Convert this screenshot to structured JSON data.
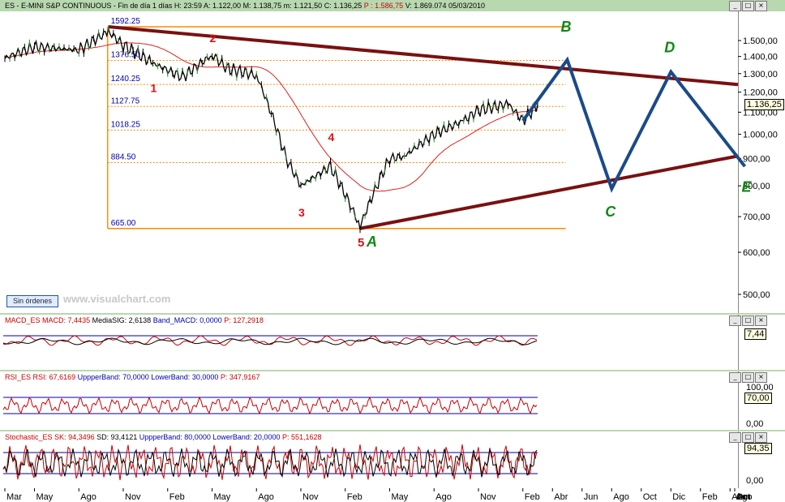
{
  "header": {
    "title": "ES - E-MINI S&P CONTINUOUS - Fin de día 1 días",
    "h_label": "H:",
    "h_value": "23:59",
    "a_label": "A:",
    "a_value": "1.122,00",
    "m_label": "M:",
    "m_value": "1.138,75",
    "mm_label": "m:",
    "mm_value": "1.121,50",
    "c_label": "C:",
    "c_value": "1.136,25",
    "p_label": "P :",
    "p_value": "1.586,75",
    "v_label": "V:",
    "v_value": "1.869.074",
    "date": "05/03/2010"
  },
  "price_scale": [
    "1.500,00",
    "1.400,00",
    "1.300,00",
    "1.200,00",
    "1.100,00",
    "1.000,00",
    "900,00",
    "800,00",
    "700,00",
    "600,00",
    "500,00"
  ],
  "last_price_badge": "1.136,25",
  "fib_levels": [
    "1592.25",
    "1376.50",
    "1240.25",
    "1127.75",
    "1018.25",
    "884.50",
    "665.00"
  ],
  "wave_labels": {
    "w1": "1",
    "w2": "2",
    "w3": "3",
    "w4": "4",
    "w5": "5",
    "A": "A",
    "B": "B",
    "C": "C",
    "D": "D",
    "E": "E"
  },
  "sin_ordenes": "Sin órdenes",
  "watermark": "www.visualchart.com",
  "macd": {
    "label": "MACD_ES",
    "macd_label": "MACD:",
    "macd_value": "7,4435",
    "sig_label": "MediaSIG:",
    "sig_value": "2,6138",
    "band_label": "Band_MACD:",
    "band_value": "0,0000",
    "p_label": "P:",
    "p_value": "127,2918",
    "badge": "7,44"
  },
  "rsi": {
    "label": "RSI_ES",
    "rsi_label": "RSI:",
    "rsi_value": "67,6169",
    "upper_label": "UppperBand:",
    "upper_value": "70,0000",
    "lower_label": "LowerBand:",
    "lower_value": "30,0000",
    "p_label": "P:",
    "p_value": "347,9167",
    "scale_top": "100,00",
    "scale_bottom": "0,00",
    "badge": "70,00"
  },
  "stoch": {
    "label": "Stochastic_ES",
    "sk_label": "SK:",
    "sk_value": "94,3496",
    "sd_label": "SD:",
    "sd_value": "93,4121",
    "upper_label": "UppperBand:",
    "upper_value": "80,0000",
    "lower_label": "LowerBand:",
    "lower_value": "20,0000",
    "p_label": "P:",
    "p_value": "551,1628",
    "badge": "94,35",
    "scale_bottom": "0,00"
  },
  "time_axis": [
    "Mar",
    "May",
    "Ago",
    "Nov",
    "Feb",
    "May",
    "Ago",
    "Nov",
    "Feb",
    "May",
    "Ago",
    "Nov",
    "Feb",
    "Abr",
    "Jun",
    "Ago",
    "Oct",
    "Dic",
    "Feb",
    "Abr",
    "Jun",
    "Ago",
    "Oct"
  ],
  "colors": {
    "price_line": "#000000",
    "candle_up": "#2e8b2e",
    "ma": "#dd2222",
    "trend": "#7a1010",
    "fib": "#ff8800",
    "projection": "#1a4a8a",
    "wave_red": "#dd1111",
    "wave_green": "#118811"
  },
  "chart_data": {
    "type": "line",
    "title": "ES - E-MINI S&P CONTINUOUS",
    "ylim": [
      450,
      1650
    ],
    "y_scale": "log",
    "series": [
      {
        "name": "ES",
        "x": [
          "2007-03",
          "2007-05",
          "2007-08",
          "2007-10",
          "2007-11",
          "2008-01",
          "2008-03",
          "2008-05",
          "2008-06",
          "2008-08",
          "2008-10",
          "2008-11",
          "2009-01",
          "2009-03",
          "2009-05",
          "2009-06",
          "2009-08",
          "2009-10",
          "2009-11",
          "2010-01",
          "2010-02",
          "2010-03"
        ],
        "values": [
          1390,
          1460,
          1440,
          1560,
          1470,
          1360,
          1280,
          1410,
          1330,
          1290,
          900,
          800,
          870,
          670,
          900,
          910,
          1000,
          1060,
          1110,
          1140,
          1060,
          1136
        ]
      }
    ],
    "fib_levels": [
      1592.25,
      1376.5,
      1240.25,
      1127.75,
      1018.25,
      884.5,
      665.0
    ],
    "projection": {
      "x": [
        "2010-02",
        "2010-05",
        "2010-08",
        "2010-12",
        "2011-05"
      ],
      "labels": [
        "",
        "B",
        "C",
        "D",
        "E"
      ],
      "values": [
        1060,
        1380,
        790,
        1310,
        870
      ]
    },
    "trendlines": [
      {
        "name": "upper",
        "x": [
          "2007-10",
          "2011-10"
        ],
        "values": [
          1592.25,
          1240
        ]
      },
      {
        "name": "lower",
        "x": [
          "2009-03",
          "2011-10"
        ],
        "values": [
          665,
          910
        ]
      }
    ]
  }
}
